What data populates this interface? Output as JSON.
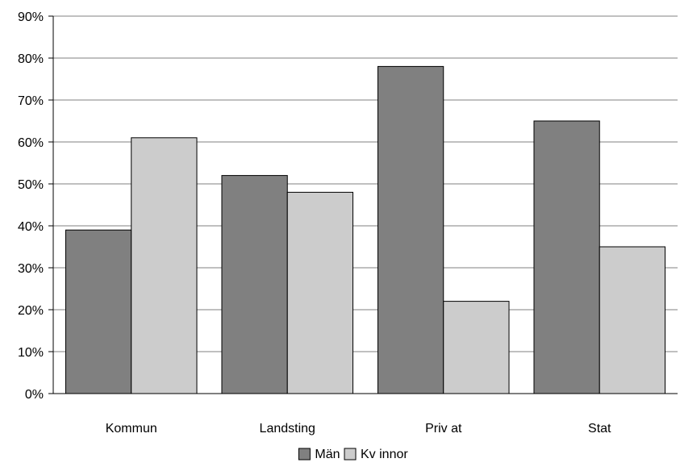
{
  "chart_data": {
    "type": "bar",
    "categories": [
      "Kommun",
      "Landsting",
      "Priv at",
      "Stat"
    ],
    "series": [
      {
        "name": "Män",
        "values": [
          39,
          52,
          78,
          65
        ],
        "color": "#808080"
      },
      {
        "name": "Kv innor",
        "values": [
          61,
          48,
          22,
          35
        ],
        "color": "#cccccc"
      }
    ],
    "ylim": [
      0,
      90
    ],
    "yticks": [
      0,
      10,
      20,
      30,
      40,
      50,
      60,
      70,
      80,
      90
    ],
    "ytick_labels": [
      "0%",
      "10%",
      "20%",
      "30%",
      "40%",
      "50%",
      "60%",
      "70%",
      "80%",
      "90%"
    ],
    "grid": true,
    "legend_position": "bottom",
    "title": "",
    "xlabel": "",
    "ylabel": ""
  }
}
